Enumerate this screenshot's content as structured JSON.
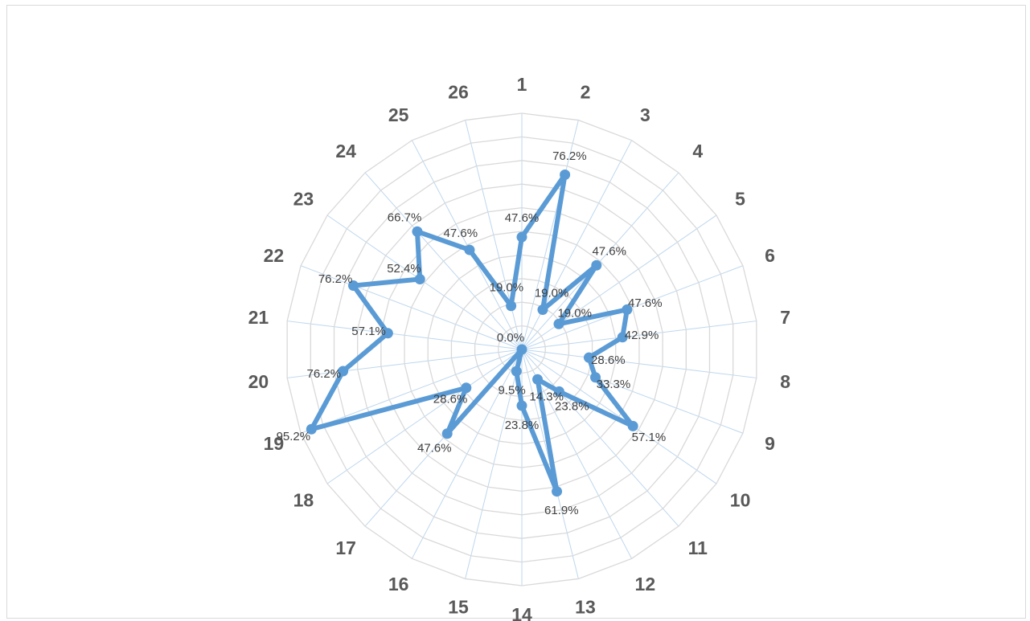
{
  "chart_data": {
    "type": "radar",
    "categories": [
      "1",
      "2",
      "3",
      "4",
      "5",
      "6",
      "7",
      "8",
      "9",
      "10",
      "11",
      "12",
      "13",
      "14",
      "15",
      "16",
      "17",
      "18",
      "19",
      "20",
      "21",
      "22",
      "23",
      "24",
      "25",
      "26"
    ],
    "series": [
      {
        "values": [
          47.6,
          76.2,
          19.0,
          47.6,
          19.0,
          47.6,
          42.9,
          28.6,
          33.3,
          57.1,
          23.8,
          14.3,
          61.9,
          23.8,
          9.5,
          0.0,
          47.6,
          28.6,
          95.2,
          76.2,
          57.1,
          76.2,
          52.4,
          66.7,
          47.6,
          19.0
        ],
        "labels": [
          "47.6%",
          "76.2%",
          "19.0%",
          "47.6%",
          "19.0%",
          "47.6%",
          "42.9%",
          "28.6%",
          "33.3%",
          "57.1%",
          "23.8%",
          "14.3%",
          "61.9%",
          "23.8%",
          "9.5%",
          "0.0%",
          "47.6%",
          "28.6%",
          "95.2%",
          "76.2%",
          "57.1%",
          "76.2%",
          "52.4%",
          "66.7%",
          "47.6%",
          "19.0%"
        ],
        "color": "#5b9bd5"
      }
    ],
    "axis_range": [
      0,
      100
    ],
    "gridlines": true,
    "grid_color": "#d9d9d9",
    "spoke_color": "#bdd7ee"
  }
}
